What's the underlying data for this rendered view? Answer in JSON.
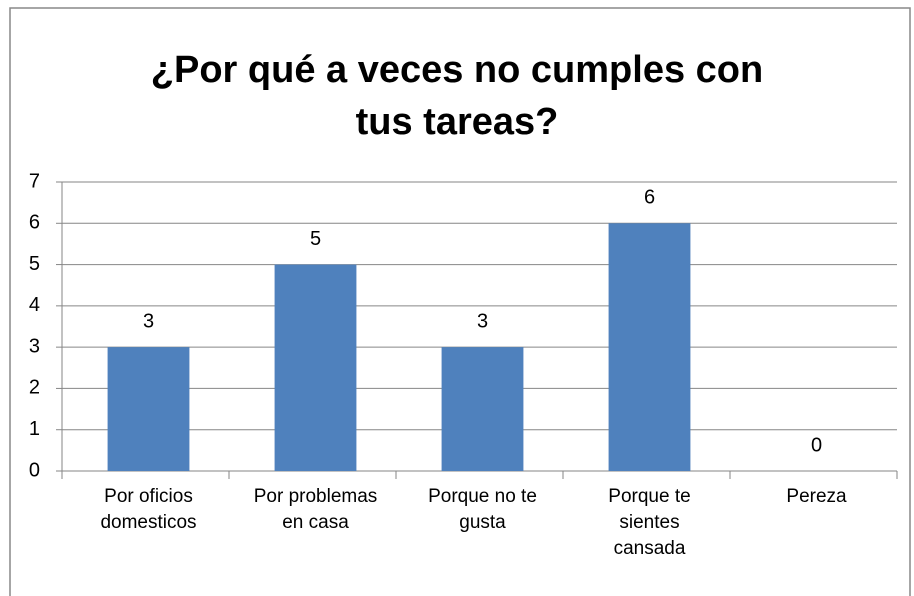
{
  "chart_data": {
    "type": "bar",
    "title": "¿Por qué a veces no cumples con\ntus tareas?",
    "categories": [
      "Por oficios\ndomesticos",
      "Por problemas\nen casa",
      "Porque no te\ngusta",
      "Porque te\nsientes\ncansada",
      "Pereza"
    ],
    "values": [
      3,
      5,
      3,
      6,
      0
    ],
    "color": "#4f81bd",
    "ylim": [
      0,
      7
    ],
    "yticks": [
      0,
      1,
      2,
      3,
      4,
      5,
      6,
      7
    ],
    "grid": true
  }
}
